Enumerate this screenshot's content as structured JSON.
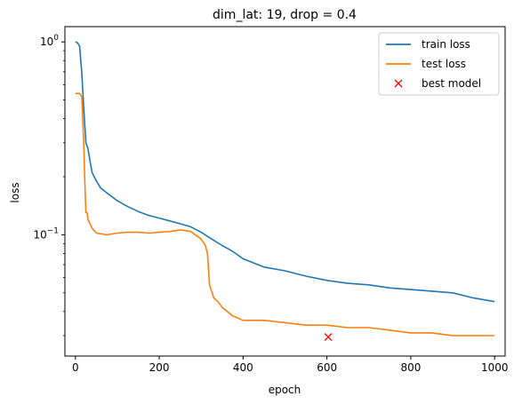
{
  "chart_data": {
    "type": "line",
    "title": "dim_lat: 19, drop = 0.4",
    "xlabel": "epoch",
    "ylabel": "loss",
    "yscale": "log",
    "xlim": [
      -25,
      1025
    ],
    "ylim": [
      0.0235,
      1.2
    ],
    "grid": false,
    "legend_position": "top-right",
    "x_ticks": [
      0,
      200,
      400,
      600,
      800,
      1000
    ],
    "y_ticks": [
      {
        "value": 1,
        "base": "10",
        "exp": "0"
      },
      {
        "value": 0.1,
        "base": "10",
        "exp": "−1"
      }
    ],
    "series": [
      {
        "name": "train loss",
        "color": "#1f77b4",
        "marker": "line",
        "x": [
          0,
          5,
          10,
          15,
          20,
          25,
          30,
          35,
          40,
          50,
          60,
          75,
          100,
          125,
          150,
          175,
          200,
          225,
          250,
          275,
          300,
          325,
          350,
          375,
          400,
          450,
          500,
          550,
          600,
          650,
          700,
          750,
          800,
          850,
          900,
          950,
          1000
        ],
        "y": [
          1.0,
          0.99,
          0.95,
          0.7,
          0.45,
          0.3,
          0.28,
          0.24,
          0.21,
          0.19,
          0.175,
          0.165,
          0.15,
          0.14,
          0.132,
          0.126,
          0.122,
          0.118,
          0.114,
          0.11,
          0.103,
          0.095,
          0.088,
          0.082,
          0.075,
          0.068,
          0.065,
          0.061,
          0.058,
          0.056,
          0.055,
          0.053,
          0.052,
          0.051,
          0.05,
          0.047,
          0.045
        ]
      },
      {
        "name": "test loss",
        "color": "#ff7f0e",
        "marker": "line",
        "x": [
          0,
          5,
          10,
          15,
          20,
          22,
          25,
          28,
          30,
          40,
          50,
          75,
          100,
          125,
          150,
          175,
          200,
          225,
          250,
          275,
          300,
          310,
          315,
          320,
          330,
          340,
          350,
          375,
          400,
          450,
          500,
          550,
          600,
          650,
          700,
          750,
          800,
          850,
          900,
          950,
          1000
        ],
        "y": [
          0.54,
          0.54,
          0.54,
          0.52,
          0.3,
          0.2,
          0.13,
          0.13,
          0.12,
          0.108,
          0.102,
          0.1,
          0.102,
          0.103,
          0.103,
          0.102,
          0.103,
          0.104,
          0.106,
          0.104,
          0.095,
          0.088,
          0.08,
          0.055,
          0.047,
          0.045,
          0.042,
          0.038,
          0.036,
          0.036,
          0.035,
          0.034,
          0.034,
          0.033,
          0.033,
          0.032,
          0.031,
          0.031,
          0.03,
          0.03,
          0.03
        ]
      },
      {
        "name": "best model",
        "color": "#ff0000",
        "marker": "x",
        "x": [
          603
        ],
        "y": [
          0.0295
        ]
      }
    ]
  }
}
